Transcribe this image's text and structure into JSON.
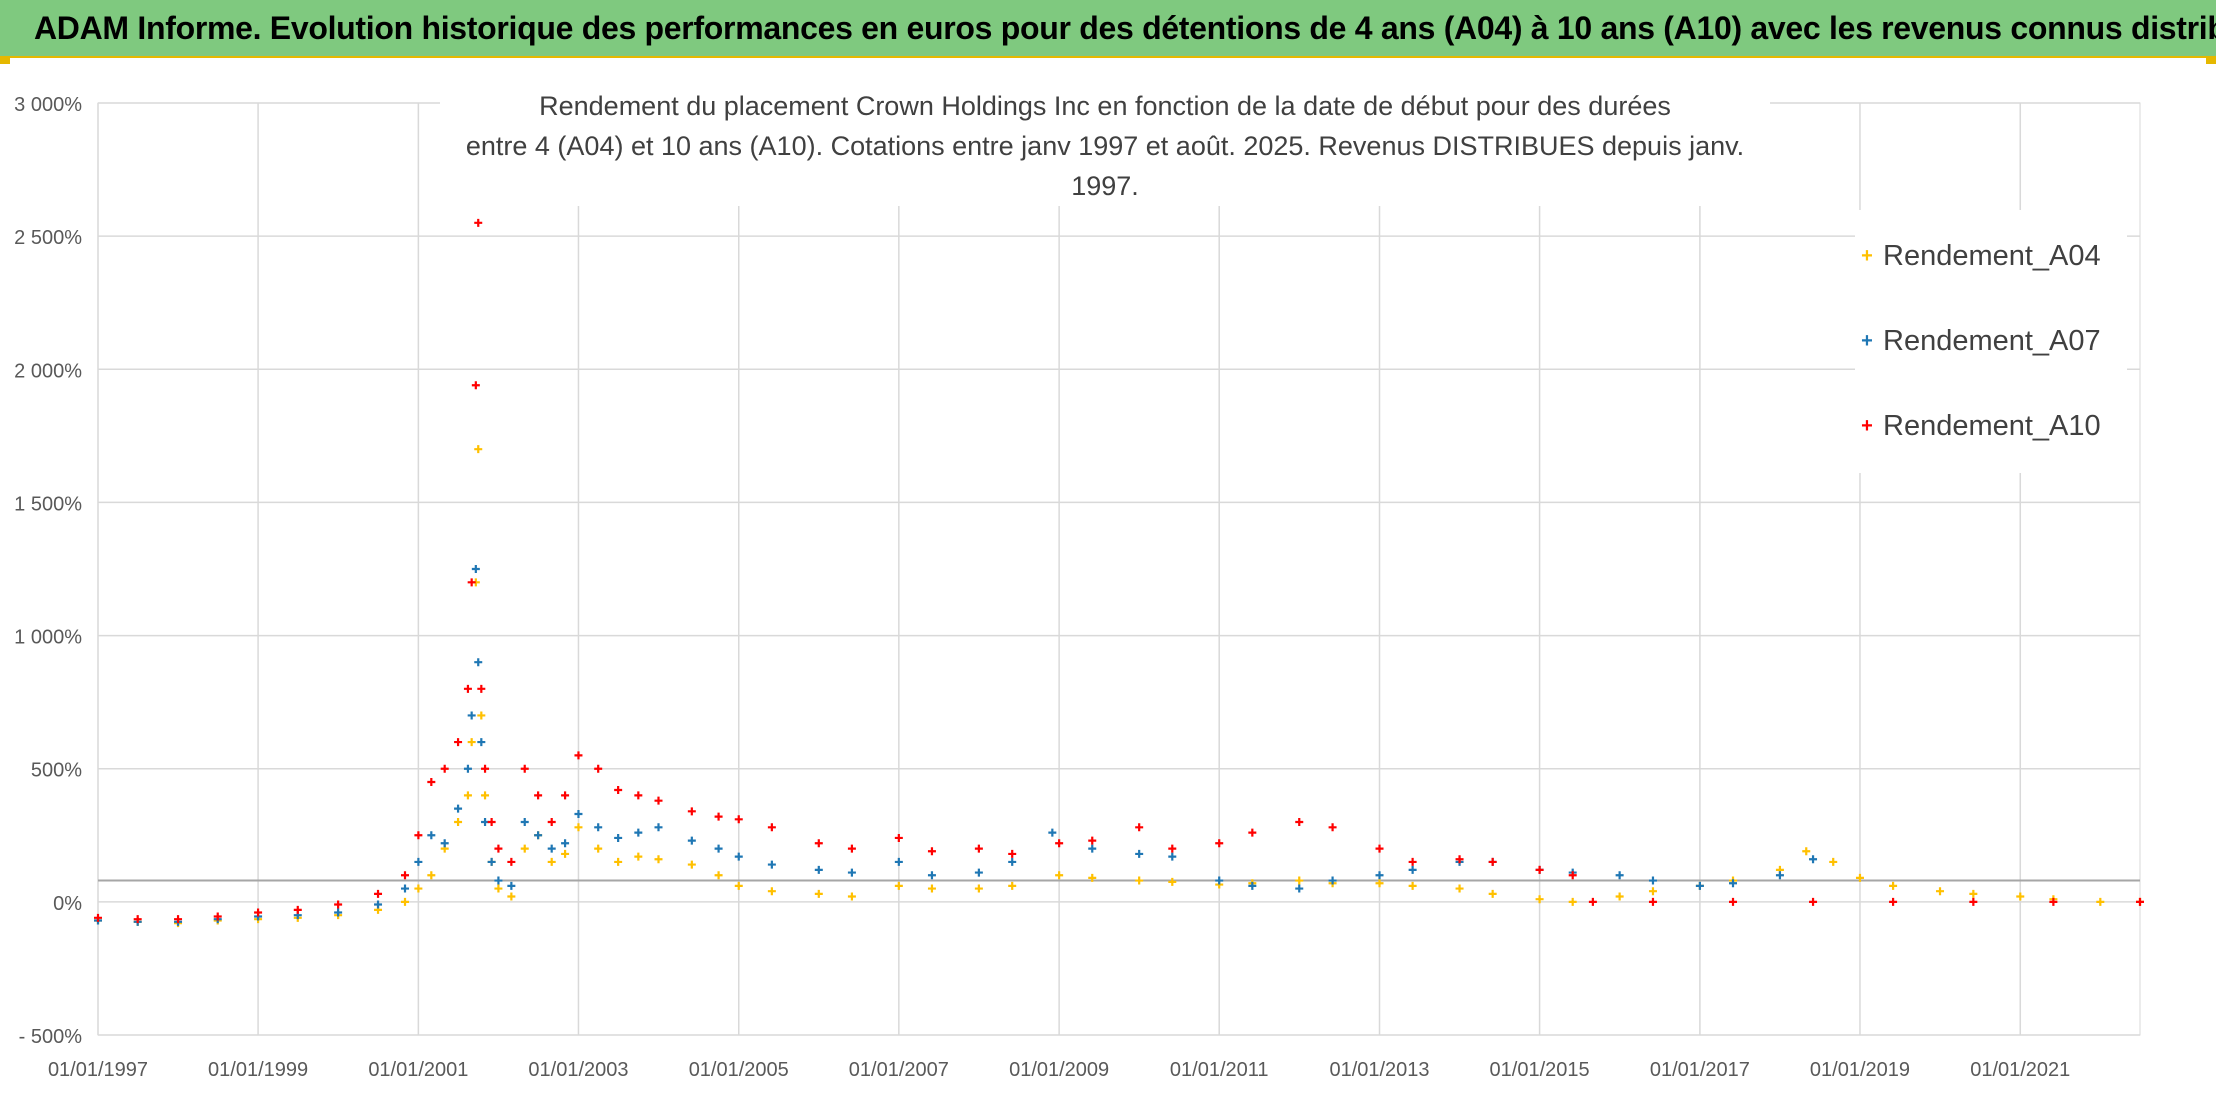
{
  "banner": {
    "title": "ADAM Informe. Evolution historique des performances en euros pour des détentions de 4 ans (A04) à 10 ans (A10) avec les revenus connus distribués"
  },
  "colors": {
    "banner_bg": "#7fc97f",
    "banner_border": "#e5b800",
    "A04": "#ffc000",
    "A07": "#1f77b4",
    "A10": "#ff0000",
    "grid": "#d9d9d9"
  },
  "chart_data": {
    "type": "scatter",
    "marker": "plus",
    "title_line1": "Rendement du placement Crown Holdings Inc en fonction de la date de début pour des durées",
    "title_line2": "entre 4 (A04) et 10 ans (A10). Cotations entre janv 1997 et août. 2025. Revenus DISTRIBUES depuis janv. 1997.",
    "xlabel": "",
    "ylabel": "",
    "x_range": [
      "01/01/1997",
      "01/07/2022"
    ],
    "ylim": [
      -500,
      3000
    ],
    "y_ticks": [
      3000,
      2500,
      2000,
      1500,
      1000,
      500,
      0,
      -500
    ],
    "y_tick_labels": [
      "3 000%",
      "2 500%",
      "2 000%",
      "1 500%",
      "1 000%",
      "500%",
      "0%",
      "- 500%"
    ],
    "x_ticks": [
      "01/01/1997",
      "01/01/1999",
      "01/01/2001",
      "01/01/2003",
      "01/01/2005",
      "01/01/2007",
      "01/01/2009",
      "01/01/2011",
      "01/01/2013",
      "01/01/2015",
      "01/01/2017",
      "01/01/2019",
      "01/01/2021"
    ],
    "reference_line_y": 80,
    "grid": true,
    "legend_position": "top-right",
    "series": [
      {
        "name": "Rendement_A04",
        "color": "#ffc000",
        "points": [
          [
            "1997-01-01",
            -70
          ],
          [
            "1997-07-01",
            -75
          ],
          [
            "1998-01-01",
            -80
          ],
          [
            "1998-07-01",
            -70
          ],
          [
            "1999-01-01",
            -65
          ],
          [
            "1999-07-01",
            -60
          ],
          [
            "2000-01-01",
            -50
          ],
          [
            "2000-07-01",
            -30
          ],
          [
            "2000-11-01",
            0
          ],
          [
            "2001-01-01",
            50
          ],
          [
            "2001-03-01",
            100
          ],
          [
            "2001-05-01",
            200
          ],
          [
            "2001-07-01",
            300
          ],
          [
            "2001-08-15",
            400
          ],
          [
            "2001-09-01",
            600
          ],
          [
            "2001-09-20",
            1200
          ],
          [
            "2001-10-01",
            1700
          ],
          [
            "2001-10-15",
            700
          ],
          [
            "2001-11-01",
            400
          ],
          [
            "2001-12-01",
            150
          ],
          [
            "2002-01-01",
            50
          ],
          [
            "2002-03-01",
            20
          ],
          [
            "2002-05-01",
            200
          ],
          [
            "2002-07-01",
            250
          ],
          [
            "2002-09-01",
            150
          ],
          [
            "2002-11-01",
            180
          ],
          [
            "2003-01-01",
            280
          ],
          [
            "2003-04-01",
            200
          ],
          [
            "2003-07-01",
            150
          ],
          [
            "2003-10-01",
            170
          ],
          [
            "2004-01-01",
            160
          ],
          [
            "2004-06-01",
            140
          ],
          [
            "2004-10-01",
            100
          ],
          [
            "2005-01-01",
            60
          ],
          [
            "2005-06-01",
            40
          ],
          [
            "2006-01-01",
            30
          ],
          [
            "2006-06-01",
            20
          ],
          [
            "2007-01-01",
            60
          ],
          [
            "2007-06-01",
            50
          ],
          [
            "2008-01-01",
            50
          ],
          [
            "2008-06-01",
            60
          ],
          [
            "2009-01-01",
            100
          ],
          [
            "2009-06-01",
            90
          ],
          [
            "2010-01-01",
            80
          ],
          [
            "2010-06-01",
            75
          ],
          [
            "2011-01-01",
            65
          ],
          [
            "2011-06-01",
            70
          ],
          [
            "2012-01-01",
            80
          ],
          [
            "2012-06-01",
            70
          ],
          [
            "2013-01-01",
            70
          ],
          [
            "2013-06-01",
            60
          ],
          [
            "2014-01-01",
            50
          ],
          [
            "2014-06-01",
            30
          ],
          [
            "2015-01-01",
            10
          ],
          [
            "2015-06-01",
            0
          ],
          [
            "2016-01-01",
            20
          ],
          [
            "2016-06-01",
            40
          ],
          [
            "2017-01-01",
            60
          ],
          [
            "2017-06-01",
            80
          ],
          [
            "2018-01-01",
            120
          ],
          [
            "2018-05-01",
            190
          ],
          [
            "2018-09-01",
            150
          ],
          [
            "2019-01-01",
            90
          ],
          [
            "2019-06-01",
            60
          ],
          [
            "2020-01-01",
            40
          ],
          [
            "2020-06-01",
            30
          ],
          [
            "2021-01-01",
            20
          ],
          [
            "2021-06-01",
            10
          ],
          [
            "2022-01-01",
            0
          ],
          [
            "2022-07-01",
            0
          ]
        ]
      },
      {
        "name": "Rendement_A07",
        "color": "#1f77b4",
        "points": [
          [
            "1997-01-01",
            -70
          ],
          [
            "1997-07-01",
            -75
          ],
          [
            "1998-01-01",
            -75
          ],
          [
            "1998-07-01",
            -65
          ],
          [
            "1999-01-01",
            -55
          ],
          [
            "1999-07-01",
            -50
          ],
          [
            "2000-01-01",
            -40
          ],
          [
            "2000-07-01",
            -10
          ],
          [
            "2000-11-01",
            50
          ],
          [
            "2001-01-01",
            150
          ],
          [
            "2001-03-01",
            250
          ],
          [
            "2001-05-01",
            220
          ],
          [
            "2001-07-01",
            350
          ],
          [
            "2001-08-15",
            500
          ],
          [
            "2001-09-01",
            700
          ],
          [
            "2001-09-20",
            1250
          ],
          [
            "2001-10-01",
            900
          ],
          [
            "2001-10-15",
            600
          ],
          [
            "2001-11-01",
            300
          ],
          [
            "2001-12-01",
            150
          ],
          [
            "2002-01-01",
            80
          ],
          [
            "2002-03-01",
            60
          ],
          [
            "2002-05-01",
            300
          ],
          [
            "2002-07-01",
            250
          ],
          [
            "2002-09-01",
            200
          ],
          [
            "2002-11-01",
            220
          ],
          [
            "2003-01-01",
            330
          ],
          [
            "2003-04-01",
            280
          ],
          [
            "2003-07-01",
            240
          ],
          [
            "2003-10-01",
            260
          ],
          [
            "2004-01-01",
            280
          ],
          [
            "2004-06-01",
            230
          ],
          [
            "2004-10-01",
            200
          ],
          [
            "2005-01-01",
            170
          ],
          [
            "2005-06-01",
            140
          ],
          [
            "2006-01-01",
            120
          ],
          [
            "2006-06-01",
            110
          ],
          [
            "2007-01-01",
            150
          ],
          [
            "2007-06-01",
            100
          ],
          [
            "2008-01-01",
            110
          ],
          [
            "2008-06-01",
            150
          ],
          [
            "2008-12-01",
            260
          ],
          [
            "2009-06-01",
            200
          ],
          [
            "2010-01-01",
            180
          ],
          [
            "2010-06-01",
            170
          ],
          [
            "2011-01-01",
            80
          ],
          [
            "2011-06-01",
            60
          ],
          [
            "2012-01-01",
            50
          ],
          [
            "2012-06-01",
            80
          ],
          [
            "2013-01-01",
            100
          ],
          [
            "2013-06-01",
            120
          ],
          [
            "2014-01-01",
            150
          ],
          [
            "2014-06-01",
            150
          ],
          [
            "2015-01-01",
            120
          ],
          [
            "2015-06-01",
            110
          ],
          [
            "2016-01-01",
            100
          ],
          [
            "2016-06-01",
            80
          ],
          [
            "2017-01-01",
            60
          ],
          [
            "2017-06-01",
            70
          ],
          [
            "2018-01-01",
            100
          ],
          [
            "2018-06-01",
            160
          ]
        ]
      },
      {
        "name": "Rendement_A10",
        "color": "#ff0000",
        "points": [
          [
            "1997-01-01",
            -60
          ],
          [
            "1997-07-01",
            -65
          ],
          [
            "1998-01-01",
            -65
          ],
          [
            "1998-07-01",
            -55
          ],
          [
            "1999-01-01",
            -40
          ],
          [
            "1999-07-01",
            -30
          ],
          [
            "2000-01-01",
            -10
          ],
          [
            "2000-07-01",
            30
          ],
          [
            "2000-11-01",
            100
          ],
          [
            "2001-01-01",
            250
          ],
          [
            "2001-03-01",
            450
          ],
          [
            "2001-05-01",
            500
          ],
          [
            "2001-07-01",
            600
          ],
          [
            "2001-08-15",
            800
          ],
          [
            "2001-09-01",
            1200
          ],
          [
            "2001-09-20",
            1940
          ],
          [
            "2001-10-01",
            2550
          ],
          [
            "2001-10-15",
            800
          ],
          [
            "2001-11-01",
            500
          ],
          [
            "2001-12-01",
            300
          ],
          [
            "2002-01-01",
            200
          ],
          [
            "2002-03-01",
            150
          ],
          [
            "2002-05-01",
            500
          ],
          [
            "2002-07-01",
            400
          ],
          [
            "2002-09-01",
            300
          ],
          [
            "2002-11-01",
            400
          ],
          [
            "2003-01-01",
            550
          ],
          [
            "2003-04-01",
            500
          ],
          [
            "2003-07-01",
            420
          ],
          [
            "2003-10-01",
            400
          ],
          [
            "2004-01-01",
            380
          ],
          [
            "2004-06-01",
            340
          ],
          [
            "2004-10-01",
            320
          ],
          [
            "2005-01-01",
            310
          ],
          [
            "2005-06-01",
            280
          ],
          [
            "2006-01-01",
            220
          ],
          [
            "2006-06-01",
            200
          ],
          [
            "2007-01-01",
            240
          ],
          [
            "2007-06-01",
            190
          ],
          [
            "2008-01-01",
            200
          ],
          [
            "2008-06-01",
            180
          ],
          [
            "2009-01-01",
            220
          ],
          [
            "2009-06-01",
            230
          ],
          [
            "2010-01-01",
            280
          ],
          [
            "2010-06-01",
            200
          ],
          [
            "2011-01-01",
            220
          ],
          [
            "2011-06-01",
            260
          ],
          [
            "2012-01-01",
            300
          ],
          [
            "2012-06-01",
            280
          ],
          [
            "2013-01-01",
            200
          ],
          [
            "2013-06-01",
            150
          ],
          [
            "2014-01-01",
            160
          ],
          [
            "2014-06-01",
            150
          ],
          [
            "2015-01-01",
            120
          ],
          [
            "2015-06-01",
            100
          ],
          [
            "2015-09-01",
            0
          ],
          [
            "2016-06-01",
            0
          ],
          [
            "2017-06-01",
            0
          ],
          [
            "2018-06-01",
            0
          ],
          [
            "2019-06-01",
            0
          ],
          [
            "2020-06-01",
            0
          ],
          [
            "2021-06-01",
            0
          ],
          [
            "2022-07-01",
            0
          ]
        ]
      }
    ]
  }
}
